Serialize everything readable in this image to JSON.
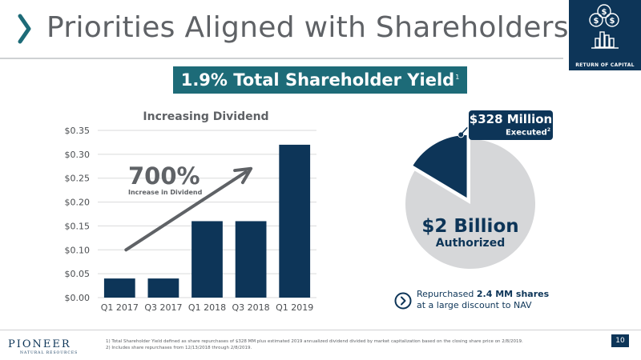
{
  "header": {
    "title": "Priorities Aligned with Shareholders",
    "badge_label": "RETURN OF CAPITAL",
    "badge_icon": "dollar-coins-bar-chart-icon"
  },
  "yield_banner": {
    "text": "1.9% Total Shareholder Yield",
    "footnote_mark": "1"
  },
  "dividend": {
    "increase_value": "700%",
    "increase_caption": "Increase in Dividend"
  },
  "chart_data": [
    {
      "type": "bar",
      "title": "Increasing Dividend",
      "categories": [
        "Q1 2017",
        "Q3 2017",
        "Q1 2018",
        "Q3 2018",
        "Q1 2019"
      ],
      "values": [
        0.04,
        0.04,
        0.16,
        0.16,
        0.32
      ],
      "y_ticks": [
        "$0.00",
        "$0.05",
        "$0.10",
        "$0.15",
        "$0.20",
        "$0.25",
        "$0.30",
        "$0.35"
      ],
      "ylim": [
        0,
        0.35
      ],
      "grid": true,
      "xlabel": "",
      "ylabel": "",
      "colors": {
        "bar": "#0d3558",
        "arrow": "#5f6266",
        "grid": "#d9dadb"
      }
    },
    {
      "type": "pie",
      "title": "",
      "labels": [
        "$328 Million Executed",
        "$2 Billion Authorized"
      ],
      "values": [
        328,
        1672
      ],
      "colors": [
        "#0d3558",
        "#d6d7d9"
      ]
    }
  ],
  "buyback": {
    "executed_amount": "$328 Million",
    "executed_label": "Executed",
    "executed_footnote": "2",
    "authorized_amount": "$2 Billion",
    "authorized_label": "Authorized"
  },
  "note": {
    "line1_prefix": "Repurchased ",
    "line1_bold": "2.4 MM shares",
    "line2": "at a large discount to NAV",
    "icon": "chevron-right-circle-icon"
  },
  "footer": {
    "logo_word": "PIONEER",
    "logo_sub": "NATURAL RESOURCES",
    "footnote_1": "1) Total Shareholder Yield defined as share repurchases of $328 MM plus estimated 2019 annualized dividend divided by market capitalization based on the closing share price on 2/8/2019.",
    "footnote_2": "2) Includes share repurchases from 12/13/2018 through 2/8/2019.",
    "page_number": "10"
  },
  "colors": {
    "navy": "#0d3558",
    "teal": "#1d6b78",
    "gray_text": "#5f6266",
    "pie_gray": "#d6d7d9"
  }
}
